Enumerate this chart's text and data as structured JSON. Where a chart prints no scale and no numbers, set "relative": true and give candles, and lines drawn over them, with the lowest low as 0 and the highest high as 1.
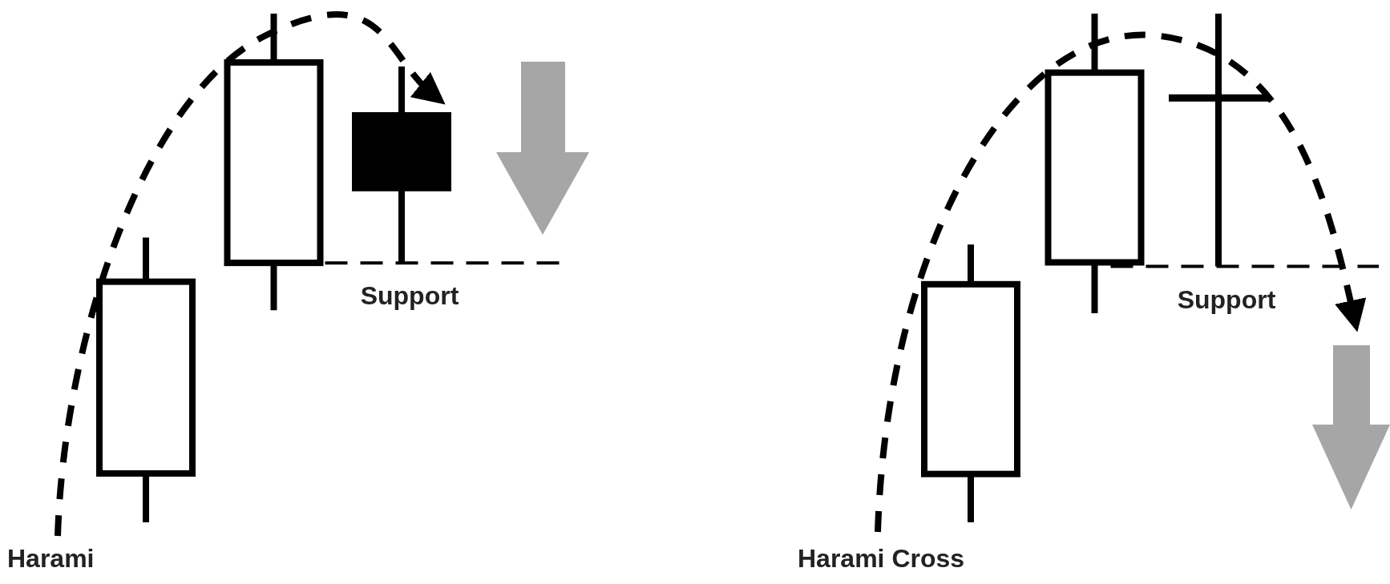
{
  "chart_data": [
    {
      "type": "candlestick",
      "title": "Harami",
      "relative": true,
      "categories": [
        null,
        null,
        null
      ],
      "ohlc": [
        [
          0.096,
          0.56,
          0,
          0.473
        ],
        [
          0.51,
          1,
          0.417,
          0.904
        ],
        [
          0.8,
          0.896,
          0.51,
          0.657
        ]
      ],
      "colors": [
        "#ffffff",
        "#ffffff",
        "#000000"
      ],
      "ref_lines": [
        {
          "axis": "y",
          "value": 0.51,
          "label": "Support",
          "color": "#000000",
          "line_style": "dashed"
        }
      ]
    },
    {
      "type": "candlestick",
      "title": "Harami Cross",
      "relative": true,
      "categories": [
        null,
        null,
        null
      ],
      "ohlc": [
        [
          0.095,
          0.546,
          0,
          0.468
        ],
        [
          0.511,
          1,
          0.411,
          0.884
        ],
        [
          0.835,
          1,
          0.503,
          0.835
        ]
      ],
      "colors": [
        "#ffffff",
        "#ffffff",
        "#000000"
      ],
      "ref_lines": [
        {
          "axis": "y",
          "value": 0.503,
          "label": "Support",
          "color": "#000000",
          "line_style": "dashed"
        }
      ]
    }
  ]
}
